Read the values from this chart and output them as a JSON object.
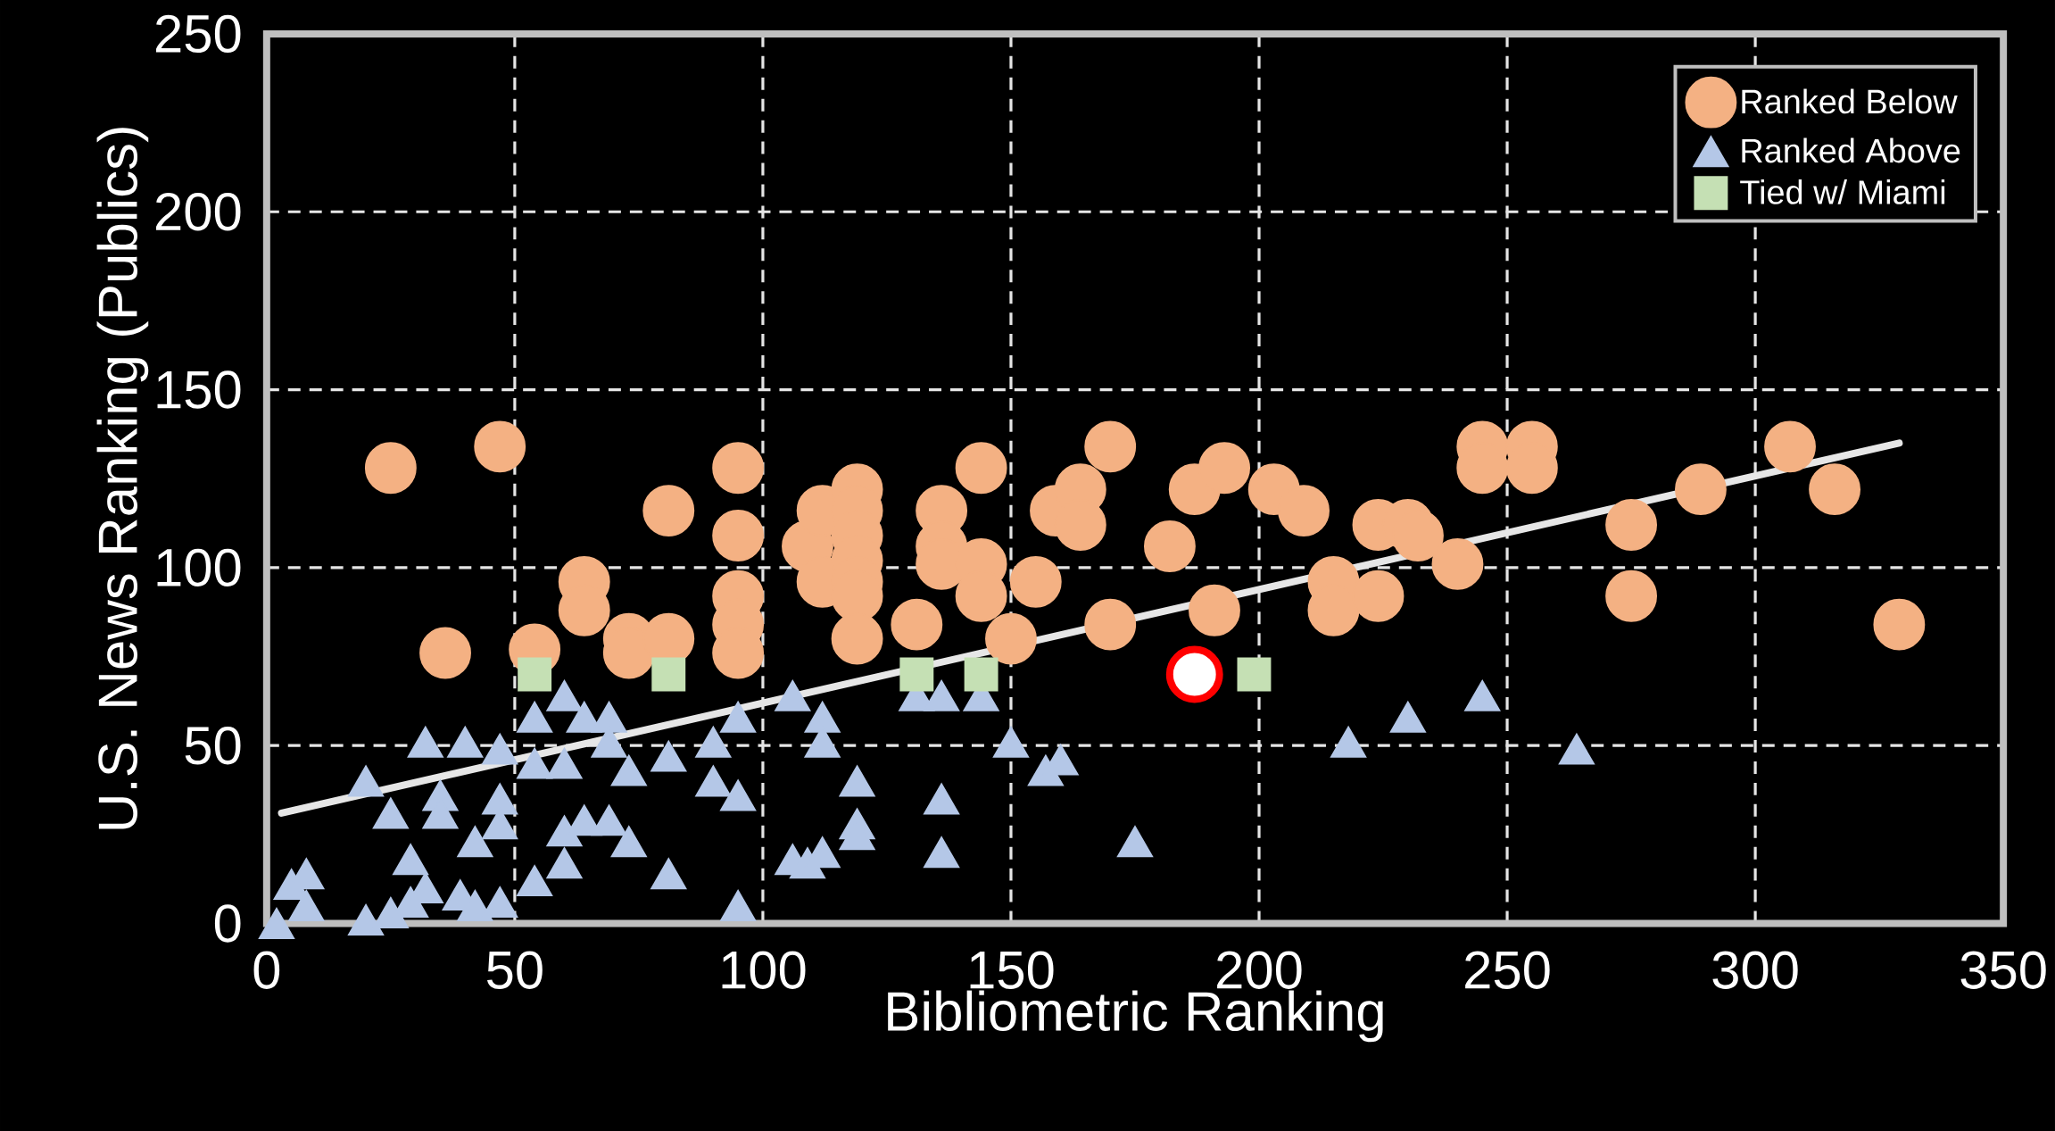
{
  "chart_data": {
    "type": "scatter",
    "xlabel": "Bibliometric Ranking",
    "ylabel": "U.S. News Ranking (Publics)",
    "xlim": [
      0,
      350
    ],
    "ylim": [
      0,
      250
    ],
    "xticks": [
      0,
      50,
      100,
      150,
      200,
      250,
      300,
      350
    ],
    "yticks": [
      0,
      50,
      100,
      150,
      200,
      250
    ],
    "grid": true,
    "legend": "top right",
    "series": [
      {
        "name": "Ranked Below",
        "color": "#f4b183",
        "marker": "circle",
        "x": [
          25,
          47,
          36,
          54,
          64,
          64,
          73,
          73,
          81,
          81,
          95,
          95,
          95,
          95,
          95,
          109,
          112,
          112,
          119,
          119,
          119,
          119,
          119,
          119,
          119,
          131,
          136,
          136,
          136,
          144,
          144,
          144,
          150,
          155,
          159,
          164,
          164,
          170,
          170,
          182,
          187,
          193,
          191,
          203,
          209,
          215,
          215,
          224,
          224,
          230,
          232,
          240,
          245,
          245,
          255,
          255,
          275,
          275,
          289,
          307,
          316,
          329
        ],
        "values": [
          128,
          134,
          76,
          77,
          96,
          88,
          80,
          76,
          116,
          80,
          128,
          109,
          92,
          84,
          76,
          106,
          116,
          96,
          122,
          116,
          109,
          102,
          96,
          92,
          80,
          84,
          116,
          106,
          101,
          128,
          101,
          92,
          80,
          96,
          116,
          122,
          112,
          134,
          84,
          106,
          122,
          128,
          88,
          122,
          116,
          96,
          88,
          112,
          92,
          112,
          109,
          101,
          134,
          128,
          134,
          128,
          112,
          92,
          122,
          134,
          122,
          84
        ]
      },
      {
        "name": "Ranked Above",
        "color": "#b4c7e7",
        "marker": "triangle",
        "x": [
          2,
          5,
          8,
          8,
          20,
          20,
          25,
          25,
          29,
          29,
          32,
          32,
          35,
          35,
          40,
          39,
          42,
          42,
          47,
          47,
          47,
          47,
          54,
          54,
          54,
          60,
          60,
          60,
          60,
          64,
          64,
          69,
          69,
          69,
          73,
          73,
          81,
          81,
          90,
          90,
          95,
          95,
          95,
          106,
          106,
          109,
          112,
          112,
          112,
          119,
          119,
          119,
          131,
          136,
          136,
          136,
          144,
          150,
          157,
          160,
          175,
          218,
          230,
          245,
          264
        ],
        "values": [
          0,
          11,
          14,
          5,
          40,
          1,
          31,
          3,
          18,
          6,
          10,
          51,
          36,
          31,
          51,
          8,
          23,
          5,
          49,
          35,
          28,
          6,
          58,
          45,
          12,
          64,
          45,
          26,
          17,
          58,
          29,
          58,
          51,
          29,
          43,
          23,
          47,
          14,
          51,
          40,
          58,
          36,
          5,
          64,
          18,
          17,
          58,
          51,
          20,
          40,
          28,
          25,
          64,
          64,
          35,
          20,
          64,
          51,
          43,
          46,
          23,
          51,
          58,
          64,
          49
        ]
      },
      {
        "name": "Tied w/ Miami",
        "color": "#c5e0b4",
        "marker": "square",
        "x": [
          54,
          81,
          131,
          144,
          199
        ],
        "values": [
          70,
          70,
          70,
          70,
          70
        ]
      },
      {
        "color": "#ff0000",
        "marker": "circle",
        "x": [
          187
        ],
        "values": [
          70
        ]
      },
      {
        "type": "line",
        "color": "#e6e6e6",
        "marker": "none",
        "x": [
          3,
          329
        ],
        "values": [
          31,
          135
        ]
      }
    ]
  }
}
